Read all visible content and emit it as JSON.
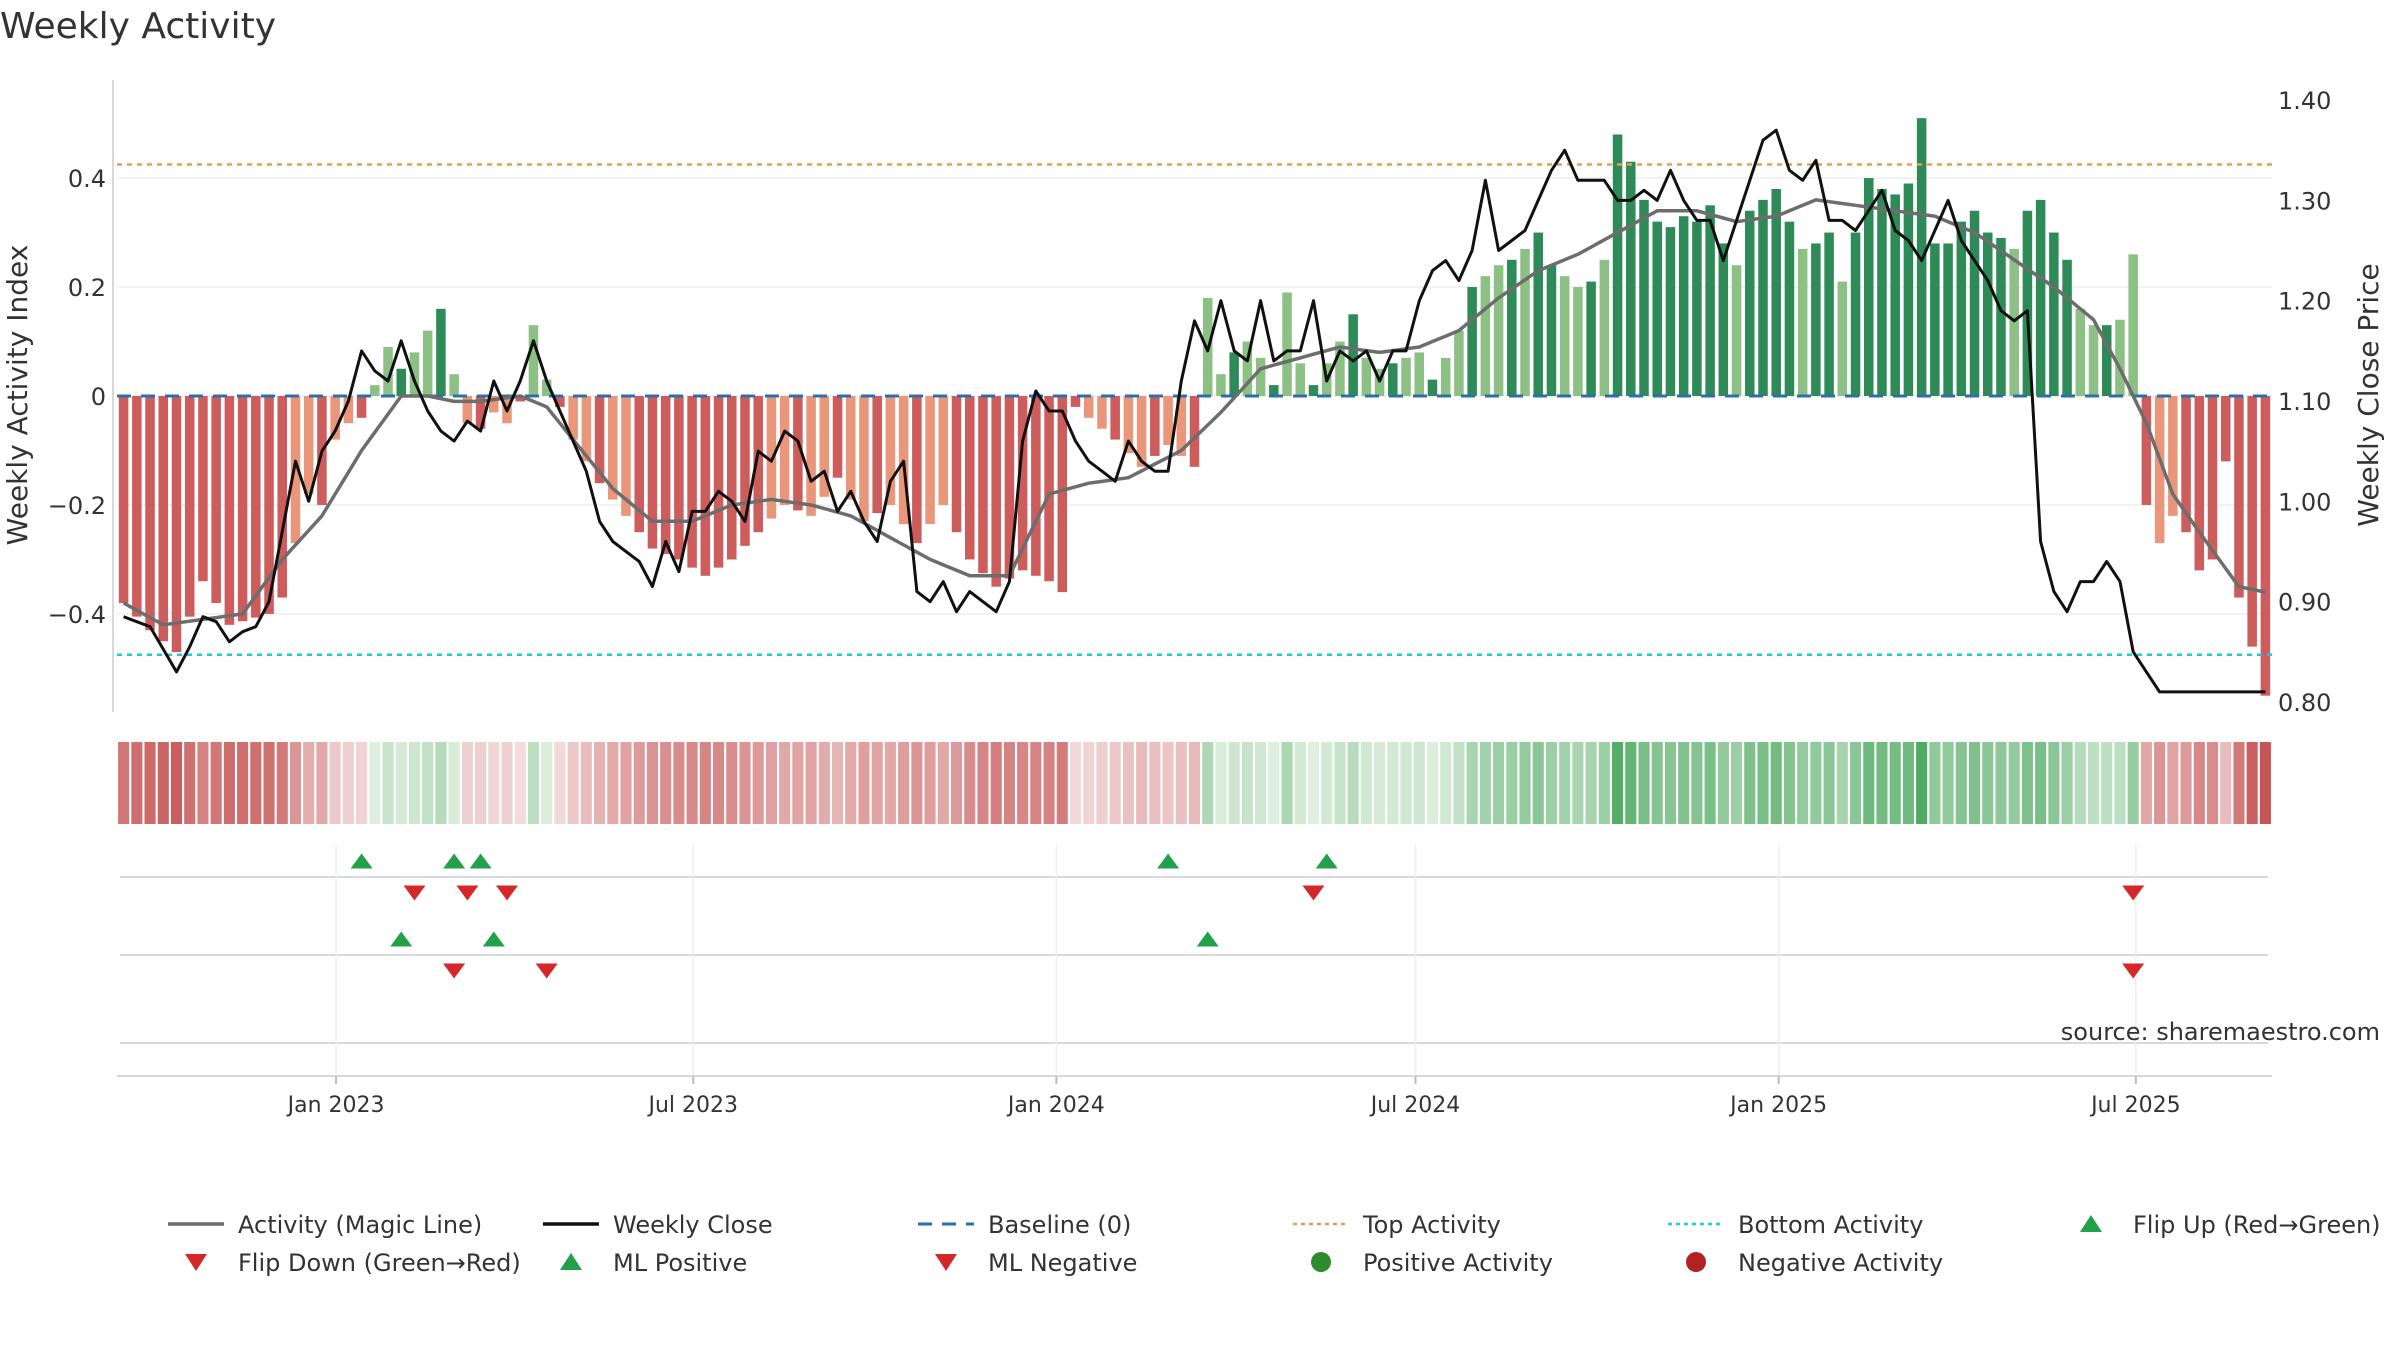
{
  "chart_data": {
    "type": "bar",
    "title": "Weekly Activity",
    "ylabel_left": "Weekly Activity Index",
    "ylabel_right": "Weekly Close Price",
    "source": "source: sharemaestro.com",
    "start_date": "2022-09-12",
    "end_date": "2025-09-08",
    "left_axis": {
      "min": -0.58,
      "max": 0.58,
      "ticks": [
        0.4,
        0.2,
        0,
        -0.2,
        -0.4
      ],
      "tick_labels": [
        "0.4",
        "0.2",
        "0",
        "−0.2",
        "−0.4"
      ]
    },
    "right_axis": {
      "min": 0.79,
      "max": 1.42,
      "ticks": [
        1.4,
        1.3,
        1.2,
        1.1,
        1.0,
        0.9,
        0.8
      ],
      "tick_labels": [
        "1.40",
        "1.30",
        "1.20",
        "1.10",
        "1.00",
        "0.90",
        "0.80"
      ]
    },
    "x_ticks": [
      {
        "date": "2023-01-01",
        "label": "Jan 2023"
      },
      {
        "date": "2023-07-01",
        "label": "Jul 2023"
      },
      {
        "date": "2024-01-01",
        "label": "Jan 2024"
      },
      {
        "date": "2024-07-01",
        "label": "Jul 2024"
      },
      {
        "date": "2025-01-01",
        "label": "Jan 2025"
      },
      {
        "date": "2025-07-01",
        "label": "Jul 2025"
      }
    ],
    "top_activity": 0.425,
    "bottom_activity": -0.475,
    "activity_keypoints": [
      [
        0,
        -0.38
      ],
      [
        2,
        -0.43
      ],
      [
        4,
        -0.47
      ],
      [
        6,
        -0.34
      ],
      [
        8,
        -0.42
      ],
      [
        11,
        -0.4
      ],
      [
        12,
        -0.37
      ],
      [
        13,
        -0.27
      ],
      [
        14,
        -0.18
      ],
      [
        15,
        -0.2
      ],
      [
        16,
        -0.08
      ],
      [
        17,
        -0.05
      ],
      [
        18,
        -0.04
      ],
      [
        19,
        0.02
      ],
      [
        20,
        0.09
      ],
      [
        21,
        0.05
      ],
      [
        22,
        0.08
      ],
      [
        23,
        0.12
      ],
      [
        24,
        0.16
      ],
      [
        25,
        0.04
      ],
      [
        26,
        -0.05
      ],
      [
        27,
        -0.06
      ],
      [
        28,
        -0.03
      ],
      [
        29,
        -0.05
      ],
      [
        30,
        -0.01
      ],
      [
        31,
        0.13
      ],
      [
        32,
        0.03
      ],
      [
        33,
        -0.02
      ],
      [
        34,
        -0.08
      ],
      [
        36,
        -0.16
      ],
      [
        38,
        -0.22
      ],
      [
        40,
        -0.28
      ],
      [
        42,
        -0.3
      ],
      [
        44,
        -0.33
      ],
      [
        46,
        -0.3
      ],
      [
        48,
        -0.25
      ],
      [
        50,
        -0.2
      ],
      [
        52,
        -0.22
      ],
      [
        54,
        -0.15
      ],
      [
        56,
        -0.23
      ],
      [
        58,
        -0.2
      ],
      [
        60,
        -0.27
      ],
      [
        62,
        -0.2
      ],
      [
        64,
        -0.3
      ],
      [
        66,
        -0.35
      ],
      [
        68,
        -0.32
      ],
      [
        70,
        -0.34
      ],
      [
        71,
        -0.36
      ],
      [
        72,
        -0.02
      ],
      [
        73,
        -0.04
      ],
      [
        75,
        -0.08
      ],
      [
        77,
        -0.13
      ],
      [
        79,
        -0.09
      ],
      [
        81,
        -0.13
      ],
      [
        82,
        0.18
      ],
      [
        83,
        0.04
      ],
      [
        84,
        0.08
      ],
      [
        85,
        0.1
      ],
      [
        86,
        0.07
      ],
      [
        87,
        0.02
      ],
      [
        88,
        0.19
      ],
      [
        89,
        0.06
      ],
      [
        90,
        0.02
      ],
      [
        91,
        0.06
      ],
      [
        92,
        0.1
      ],
      [
        93,
        0.15
      ],
      [
        94,
        0.07
      ],
      [
        95,
        0.05
      ],
      [
        96,
        0.06
      ],
      [
        97,
        0.07
      ],
      [
        98,
        0.08
      ],
      [
        99,
        0.03
      ],
      [
        100,
        0.07
      ],
      [
        101,
        0.12
      ],
      [
        102,
        0.2
      ],
      [
        103,
        0.22
      ],
      [
        104,
        0.24
      ],
      [
        105,
        0.25
      ],
      [
        106,
        0.27
      ],
      [
        107,
        0.3
      ],
      [
        108,
        0.24
      ],
      [
        109,
        0.22
      ],
      [
        110,
        0.2
      ],
      [
        111,
        0.21
      ],
      [
        112,
        0.25
      ],
      [
        113,
        0.48
      ],
      [
        114,
        0.43
      ],
      [
        115,
        0.36
      ],
      [
        116,
        0.32
      ],
      [
        117,
        0.31
      ],
      [
        118,
        0.33
      ],
      [
        119,
        0.32
      ],
      [
        120,
        0.35
      ],
      [
        121,
        0.28
      ],
      [
        122,
        0.24
      ],
      [
        123,
        0.34
      ],
      [
        124,
        0.36
      ],
      [
        125,
        0.38
      ],
      [
        126,
        0.32
      ],
      [
        127,
        0.27
      ],
      [
        128,
        0.28
      ],
      [
        129,
        0.3
      ],
      [
        130,
        0.21
      ],
      [
        131,
        0.3
      ],
      [
        132,
        0.4
      ],
      [
        133,
        0.38
      ],
      [
        134,
        0.37
      ],
      [
        135,
        0.39
      ],
      [
        136,
        0.51
      ],
      [
        137,
        0.28
      ],
      [
        138,
        0.28
      ],
      [
        139,
        0.32
      ],
      [
        140,
        0.34
      ],
      [
        141,
        0.3
      ],
      [
        142,
        0.29
      ],
      [
        143,
        0.27
      ],
      [
        144,
        0.34
      ],
      [
        145,
        0.36
      ],
      [
        146,
        0.3
      ],
      [
        147,
        0.25
      ],
      [
        148,
        0.16
      ],
      [
        149,
        0.13
      ],
      [
        150,
        0.13
      ],
      [
        151,
        0.14
      ],
      [
        152,
        0.26
      ],
      [
        153,
        -0.2
      ],
      [
        154,
        -0.27
      ],
      [
        155,
        -0.22
      ],
      [
        156,
        -0.25
      ],
      [
        157,
        -0.32
      ],
      [
        158,
        -0.3
      ],
      [
        159,
        -0.12
      ],
      [
        160,
        -0.37
      ],
      [
        162,
        -0.55
      ]
    ],
    "close_keypoints": [
      [
        0,
        0.885
      ],
      [
        2,
        0.875
      ],
      [
        4,
        0.83
      ],
      [
        5,
        0.855
      ],
      [
        6,
        0.885
      ],
      [
        7,
        0.88
      ],
      [
        8,
        0.86
      ],
      [
        9,
        0.87
      ],
      [
        10,
        0.875
      ],
      [
        11,
        0.9
      ],
      [
        12,
        0.97
      ],
      [
        13,
        1.04
      ],
      [
        14,
        1.0
      ],
      [
        15,
        1.05
      ],
      [
        16,
        1.07
      ],
      [
        17,
        1.1
      ],
      [
        18,
        1.15
      ],
      [
        19,
        1.13
      ],
      [
        20,
        1.12
      ],
      [
        21,
        1.16
      ],
      [
        22,
        1.12
      ],
      [
        23,
        1.09
      ],
      [
        24,
        1.07
      ],
      [
        25,
        1.06
      ],
      [
        26,
        1.08
      ],
      [
        27,
        1.07
      ],
      [
        28,
        1.12
      ],
      [
        29,
        1.09
      ],
      [
        30,
        1.12
      ],
      [
        31,
        1.16
      ],
      [
        32,
        1.12
      ],
      [
        33,
        1.09
      ],
      [
        34,
        1.06
      ],
      [
        35,
        1.03
      ],
      [
        36,
        0.98
      ],
      [
        37,
        0.96
      ],
      [
        38,
        0.95
      ],
      [
        39,
        0.94
      ],
      [
        40,
        0.915
      ],
      [
        41,
        0.96
      ],
      [
        42,
        0.93
      ],
      [
        43,
        0.99
      ],
      [
        44,
        0.99
      ],
      [
        45,
        1.01
      ],
      [
        46,
        1.0
      ],
      [
        47,
        0.98
      ],
      [
        48,
        1.05
      ],
      [
        49,
        1.04
      ],
      [
        50,
        1.07
      ],
      [
        51,
        1.06
      ],
      [
        52,
        1.02
      ],
      [
        53,
        1.03
      ],
      [
        54,
        0.99
      ],
      [
        55,
        1.01
      ],
      [
        56,
        0.98
      ],
      [
        57,
        0.96
      ],
      [
        58,
        1.02
      ],
      [
        59,
        1.04
      ],
      [
        60,
        0.91
      ],
      [
        61,
        0.9
      ],
      [
        62,
        0.92
      ],
      [
        63,
        0.89
      ],
      [
        64,
        0.91
      ],
      [
        65,
        0.9
      ],
      [
        66,
        0.89
      ],
      [
        67,
        0.92
      ],
      [
        68,
        1.06
      ],
      [
        69,
        1.11
      ],
      [
        70,
        1.09
      ],
      [
        71,
        1.09
      ],
      [
        72,
        1.06
      ],
      [
        73,
        1.04
      ],
      [
        74,
        1.03
      ],
      [
        75,
        1.02
      ],
      [
        76,
        1.06
      ],
      [
        77,
        1.04
      ],
      [
        78,
        1.03
      ],
      [
        79,
        1.03
      ],
      [
        80,
        1.12
      ],
      [
        81,
        1.18
      ],
      [
        82,
        1.15
      ],
      [
        83,
        1.2
      ],
      [
        84,
        1.15
      ],
      [
        85,
        1.14
      ],
      [
        86,
        1.2
      ],
      [
        87,
        1.14
      ],
      [
        88,
        1.15
      ],
      [
        89,
        1.15
      ],
      [
        90,
        1.2
      ],
      [
        91,
        1.12
      ],
      [
        92,
        1.15
      ],
      [
        93,
        1.14
      ],
      [
        94,
        1.15
      ],
      [
        95,
        1.12
      ],
      [
        96,
        1.15
      ],
      [
        97,
        1.15
      ],
      [
        98,
        1.2
      ],
      [
        99,
        1.23
      ],
      [
        100,
        1.24
      ],
      [
        101,
        1.22
      ],
      [
        102,
        1.25
      ],
      [
        103,
        1.32
      ],
      [
        104,
        1.25
      ],
      [
        105,
        1.26
      ],
      [
        106,
        1.27
      ],
      [
        107,
        1.3
      ],
      [
        108,
        1.33
      ],
      [
        109,
        1.35
      ],
      [
        110,
        1.32
      ],
      [
        111,
        1.32
      ],
      [
        112,
        1.32
      ],
      [
        113,
        1.3
      ],
      [
        114,
        1.3
      ],
      [
        115,
        1.31
      ],
      [
        116,
        1.3
      ],
      [
        117,
        1.33
      ],
      [
        118,
        1.3
      ],
      [
        119,
        1.28
      ],
      [
        120,
        1.28
      ],
      [
        121,
        1.24
      ],
      [
        122,
        1.28
      ],
      [
        123,
        1.32
      ],
      [
        124,
        1.36
      ],
      [
        125,
        1.37
      ],
      [
        126,
        1.33
      ],
      [
        127,
        1.32
      ],
      [
        128,
        1.34
      ],
      [
        129,
        1.28
      ],
      [
        130,
        1.28
      ],
      [
        131,
        1.27
      ],
      [
        132,
        1.29
      ],
      [
        133,
        1.31
      ],
      [
        134,
        1.27
      ],
      [
        135,
        1.26
      ],
      [
        136,
        1.24
      ],
      [
        137,
        1.27
      ],
      [
        138,
        1.3
      ],
      [
        139,
        1.26
      ],
      [
        140,
        1.24
      ],
      [
        141,
        1.22
      ],
      [
        142,
        1.19
      ],
      [
        143,
        1.18
      ],
      [
        144,
        1.19
      ],
      [
        145,
        0.96
      ],
      [
        146,
        0.91
      ],
      [
        147,
        0.89
      ],
      [
        148,
        0.92
      ],
      [
        149,
        0.92
      ],
      [
        150,
        0.94
      ],
      [
        151,
        0.92
      ],
      [
        152,
        0.85
      ],
      [
        153,
        0.83
      ],
      [
        154,
        0.81
      ],
      [
        155,
        0.81
      ]
    ],
    "ml_keypoints": [
      [
        0,
        -0.38
      ],
      [
        3,
        -0.42
      ],
      [
        6,
        -0.41
      ],
      [
        9,
        -0.4
      ],
      [
        12,
        -0.3
      ],
      [
        15,
        -0.22
      ],
      [
        18,
        -0.1
      ],
      [
        21,
        0.0
      ],
      [
        23,
        0.0
      ],
      [
        25,
        -0.01
      ],
      [
        27,
        -0.01
      ],
      [
        30,
        0.0
      ],
      [
        32,
        -0.02
      ],
      [
        34,
        -0.08
      ],
      [
        37,
        -0.17
      ],
      [
        40,
        -0.23
      ],
      [
        43,
        -0.23
      ],
      [
        46,
        -0.2
      ],
      [
        49,
        -0.19
      ],
      [
        52,
        -0.2
      ],
      [
        55,
        -0.22
      ],
      [
        58,
        -0.26
      ],
      [
        61,
        -0.3
      ],
      [
        64,
        -0.33
      ],
      [
        67,
        -0.33
      ],
      [
        70,
        -0.18
      ],
      [
        73,
        -0.16
      ],
      [
        76,
        -0.15
      ],
      [
        80,
        -0.1
      ],
      [
        83,
        -0.03
      ],
      [
        86,
        0.05
      ],
      [
        89,
        0.07
      ],
      [
        92,
        0.09
      ],
      [
        95,
        0.08
      ],
      [
        98,
        0.09
      ],
      [
        101,
        0.12
      ],
      [
        104,
        0.18
      ],
      [
        107,
        0.23
      ],
      [
        110,
        0.26
      ],
      [
        113,
        0.3
      ],
      [
        116,
        0.34
      ],
      [
        119,
        0.34
      ],
      [
        122,
        0.32
      ],
      [
        125,
        0.33
      ],
      [
        128,
        0.36
      ],
      [
        131,
        0.35
      ],
      [
        134,
        0.34
      ],
      [
        137,
        0.33
      ],
      [
        140,
        0.3
      ],
      [
        143,
        0.25
      ],
      [
        146,
        0.2
      ],
      [
        149,
        0.14
      ],
      [
        151,
        0.05
      ],
      [
        153,
        -0.05
      ],
      [
        155,
        -0.18
      ],
      [
        157,
        -0.25
      ],
      [
        160,
        -0.35
      ],
      [
        162,
        -0.36
      ]
    ],
    "flip_up_row1": [
      18,
      25,
      27,
      79,
      91
    ],
    "flip_down_row1": [
      22,
      26,
      29,
      90,
      152
    ],
    "ml_positive": [
      21,
      28,
      82
    ],
    "ml_negative": [
      25,
      32,
      152
    ],
    "colors": {
      "positive_dark": "#2e8b57",
      "positive_light": "#8cc084",
      "negative_dark": "#cd5c5c",
      "negative_light": "#e9967a",
      "up_marker": "#22a04b",
      "down_marker": "#d62728",
      "ml_line": "#6d6d6d",
      "close_line": "#111111",
      "baseline": "#2e6fa8",
      "top_line": "#e3a055",
      "bottom_line": "#22c7d8"
    },
    "legend": [
      {
        "label": "Activity (Magic Line)",
        "kind": "line",
        "color": "#6d6d6d"
      },
      {
        "label": "Weekly Close",
        "kind": "line",
        "color": "#111111"
      },
      {
        "label": "Baseline (0)",
        "kind": "dashed",
        "color": "#2e6fa8"
      },
      {
        "label": "Top Activity",
        "kind": "dotted",
        "color": "#e3a055"
      },
      {
        "label": "Bottom Activity",
        "kind": "dotted",
        "color": "#22c7d8"
      },
      {
        "label": "Flip Up (Red→Green)",
        "kind": "tri-up",
        "color": "#22a04b"
      },
      {
        "label": "Flip Down (Green→Red)",
        "kind": "tri-down",
        "color": "#d62728"
      },
      {
        "label": "ML Positive",
        "kind": "tri-up",
        "color": "#22a04b"
      },
      {
        "label": "ML Negative",
        "kind": "tri-down",
        "color": "#d62728"
      },
      {
        "label": "Positive Activity",
        "kind": "dot",
        "color": "#2e8b2e"
      },
      {
        "label": "Negative Activity",
        "kind": "dot",
        "color": "#b22222"
      }
    ]
  }
}
